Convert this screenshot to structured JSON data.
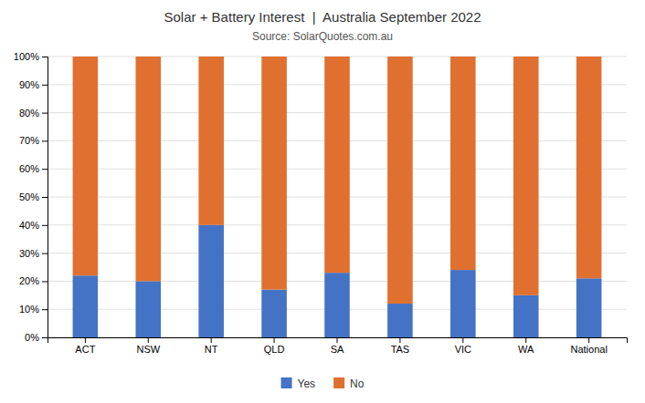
{
  "chart_data": {
    "type": "bar",
    "stacked": true,
    "title": "Solar + Battery Interest  |  Australia September 2022",
    "subtitle": "Source: SolarQuotes.com.au",
    "categories": [
      "ACT",
      "NSW",
      "NT",
      "QLD",
      "SA",
      "TAS",
      "VIC",
      "WA",
      "National"
    ],
    "series": [
      {
        "name": "Yes",
        "color": "#4472C4",
        "values": [
          22,
          20,
          40,
          17,
          23,
          12,
          24,
          15,
          21
        ]
      },
      {
        "name": "No",
        "color": "#E07030",
        "values": [
          78,
          80,
          60,
          83,
          77,
          88,
          76,
          85,
          79
        ]
      }
    ],
    "ylim": [
      0,
      100
    ],
    "yticks": [
      {
        "value": 0,
        "label": "0%"
      },
      {
        "value": 10,
        "label": "10%"
      },
      {
        "value": 20,
        "label": "20%"
      },
      {
        "value": 30,
        "label": "30%"
      },
      {
        "value": 40,
        "label": "40%"
      },
      {
        "value": 50,
        "label": "50%"
      },
      {
        "value": 60,
        "label": "60%"
      },
      {
        "value": 70,
        "label": "70%"
      },
      {
        "value": 80,
        "label": "80%"
      },
      {
        "value": 90,
        "label": "90%"
      },
      {
        "value": 100,
        "label": "100%"
      }
    ],
    "grid": true,
    "legend": "bottom"
  }
}
